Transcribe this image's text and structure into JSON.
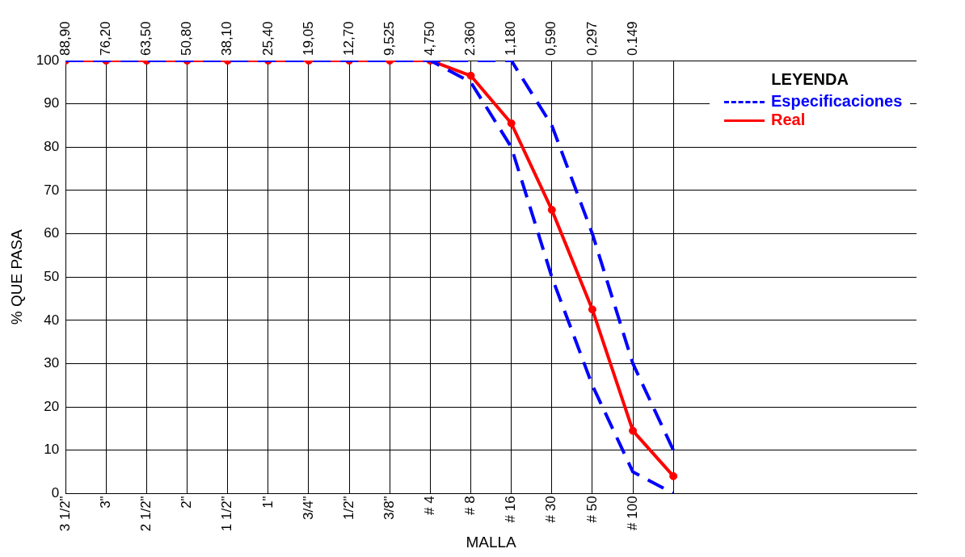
{
  "chart_data": {
    "type": "line",
    "xlabel": "MALLA",
    "ylabel": "% QUE PASA",
    "legend_title": "LEYENDA",
    "legend": "top right",
    "grid": true,
    "categories": [
      "3 1/2\"",
      "3\"",
      "2 1/2\"",
      "2\"",
      "1 1/2\"",
      "1\"",
      "3/4\"",
      "1/2\"",
      "3/8\"",
      "# 4",
      "# 8",
      "# 16",
      "# 30",
      "# 50",
      "# 100",
      null
    ],
    "ylim": [
      0,
      100
    ],
    "yticks": [
      0,
      10,
      20,
      30,
      40,
      50,
      60,
      70,
      80,
      90,
      100
    ],
    "annotations": [
      "88,90",
      "76,20",
      "63,50",
      "50,80",
      "38,10",
      "25,40",
      "19,05",
      "12,70",
      "9,525",
      "4,750",
      "2.360",
      "1,180",
      "0,590",
      "0,297",
      "0.149"
    ],
    "series": [
      {
        "name": "Especificaciones",
        "color": "#0000ff",
        "line_style": "dashed",
        "marker": "none",
        "values": [
          100,
          100,
          100,
          100,
          100,
          100,
          100,
          100,
          100,
          100,
          100,
          100,
          85,
          60,
          30,
          10
        ]
      },
      {
        "color": "#0000ff",
        "line_style": "dashed",
        "marker": "none",
        "values": [
          100,
          100,
          100,
          100,
          100,
          100,
          100,
          100,
          100,
          100,
          95,
          80,
          50,
          25,
          5,
          0
        ]
      },
      {
        "name": "Real",
        "color": "#ff0000",
        "line_style": "solid",
        "marker": "circle",
        "values": [
          100,
          100,
          100,
          100,
          100,
          100,
          100,
          100,
          100,
          100,
          96.5,
          85.5,
          65.5,
          42.5,
          14.5,
          4
        ]
      }
    ]
  }
}
